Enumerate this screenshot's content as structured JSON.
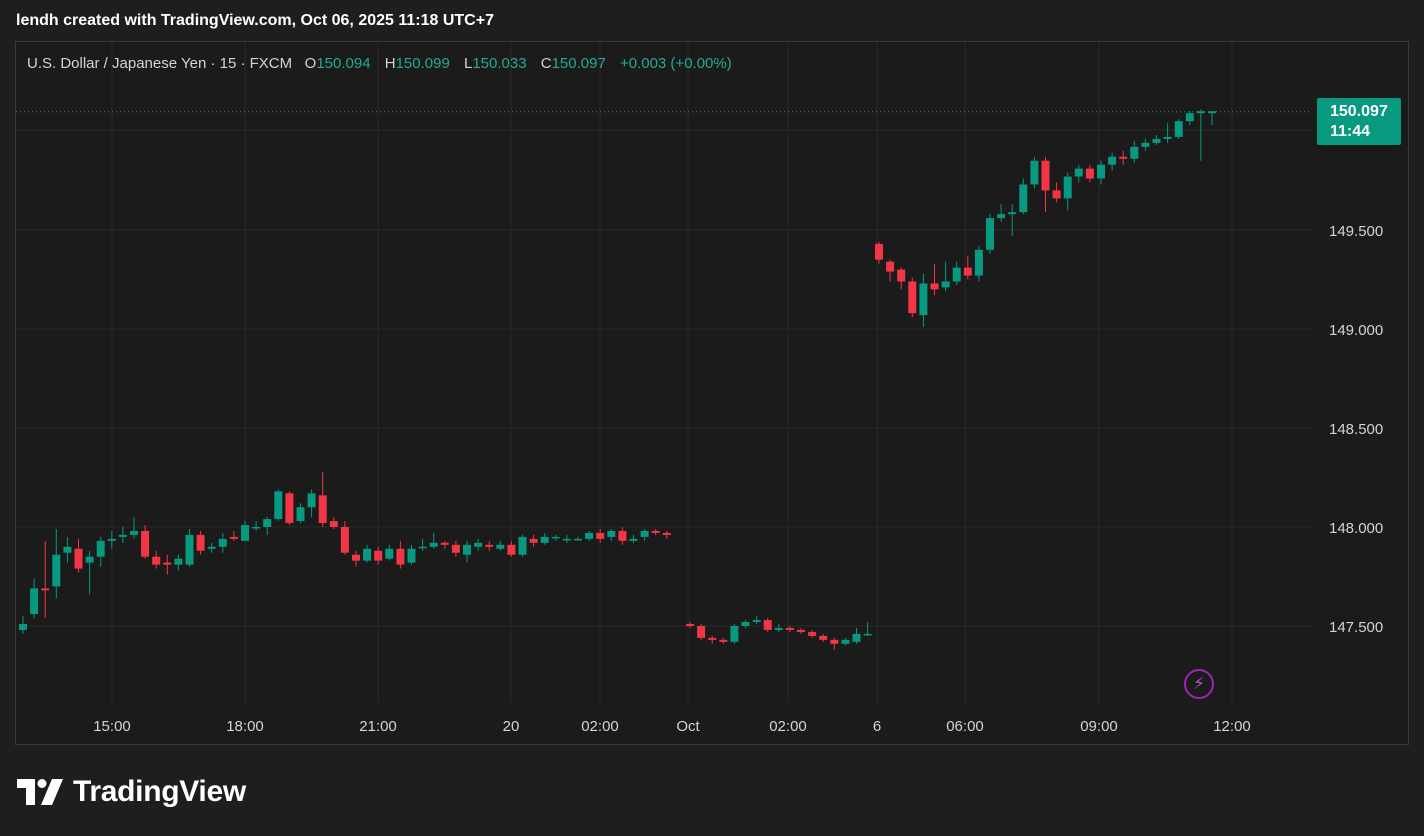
{
  "header": {
    "caption": "lendh created with TradingView.com, Oct 06, 2025 11:18 UTC+7"
  },
  "legend": {
    "symbol": "U.S. Dollar / Japanese Yen · 15 · FXCM",
    "open_label": "O",
    "open": "150.094",
    "high_label": "H",
    "high": "150.099",
    "low_label": "L",
    "low": "150.033",
    "close_label": "C",
    "close": "150.097",
    "change": "+0.003 (+0.00%)"
  },
  "price_tag": {
    "price": "150.097",
    "countdown": "11:44"
  },
  "icons": {
    "bolt": "lightning-bolt-icon",
    "logo": "tradingview-logo-icon"
  },
  "brand": {
    "name": "TradingView"
  },
  "colors": {
    "up": "#089981",
    "down": "#f23645",
    "background": "#1b1b1b",
    "grid": "#2a2a2a",
    "text": "#d1d4dc",
    "accent": "#9c27b0"
  },
  "chart_data": {
    "type": "candlestick",
    "title": "U.S. Dollar / Japanese Yen · 15 · FXCM",
    "ylim": [
      147.12,
      150.47
    ],
    "y_ticks": [
      "147.500",
      "148.000",
      "148.500",
      "149.000",
      "149.500"
    ],
    "x_tick_labels": [
      "15:00",
      "18:00",
      "21:00",
      "20",
      "02:00",
      "Oct",
      "02:00",
      "6",
      "06:00",
      "09:00",
      "12:00"
    ],
    "last_price": 150.097,
    "grid": true,
    "candles": [
      [
        147.48,
        147.51,
        147.46,
        147.55
      ],
      [
        147.56,
        147.69,
        147.54,
        147.74
      ],
      [
        147.69,
        147.68,
        147.54,
        147.93
      ],
      [
        147.7,
        147.86,
        147.64,
        147.99
      ],
      [
        147.87,
        147.9,
        147.82,
        147.95
      ],
      [
        147.89,
        147.79,
        147.77,
        147.94
      ],
      [
        147.82,
        147.85,
        147.66,
        147.88
      ],
      [
        147.85,
        147.93,
        147.8,
        147.95
      ],
      [
        147.93,
        147.94,
        147.89,
        147.98
      ],
      [
        147.95,
        147.96,
        147.92,
        148.0
      ],
      [
        147.96,
        147.98,
        147.94,
        148.05
      ],
      [
        147.98,
        147.85,
        147.84,
        148.01
      ],
      [
        147.85,
        147.81,
        147.79,
        147.88
      ],
      [
        147.82,
        147.81,
        147.76,
        147.86
      ],
      [
        147.81,
        147.84,
        147.78,
        147.86
      ],
      [
        147.81,
        147.96,
        147.8,
        147.99
      ],
      [
        147.96,
        147.88,
        147.86,
        147.98
      ],
      [
        147.89,
        147.9,
        147.87,
        147.92
      ],
      [
        147.9,
        147.94,
        147.87,
        147.97
      ],
      [
        147.95,
        147.94,
        147.93,
        147.98
      ],
      [
        147.93,
        148.01,
        147.93,
        148.03
      ],
      [
        148.0,
        148.0,
        147.98,
        148.03
      ],
      [
        148.0,
        148.04,
        147.96,
        148.05
      ],
      [
        148.04,
        148.18,
        148.03,
        148.19
      ],
      [
        148.17,
        148.02,
        148.01,
        148.18
      ],
      [
        148.03,
        148.1,
        148.02,
        148.12
      ],
      [
        148.1,
        148.17,
        148.05,
        148.19
      ],
      [
        148.16,
        148.02,
        148.0,
        148.28
      ],
      [
        148.03,
        148.0,
        147.99,
        148.05
      ],
      [
        148.0,
        147.87,
        147.86,
        148.03
      ],
      [
        147.86,
        147.83,
        147.8,
        147.88
      ],
      [
        147.83,
        147.89,
        147.82,
        147.91
      ],
      [
        147.88,
        147.83,
        147.81,
        147.9
      ],
      [
        147.84,
        147.89,
        147.83,
        147.91
      ],
      [
        147.89,
        147.81,
        147.79,
        147.93
      ],
      [
        147.82,
        147.89,
        147.81,
        147.91
      ],
      [
        147.9,
        147.9,
        147.88,
        147.94
      ],
      [
        147.9,
        147.92,
        147.89,
        147.97
      ],
      [
        147.92,
        147.91,
        147.89,
        147.93
      ],
      [
        147.91,
        147.87,
        147.85,
        147.93
      ],
      [
        147.86,
        147.91,
        147.82,
        147.93
      ],
      [
        147.9,
        147.92,
        147.88,
        147.94
      ],
      [
        147.91,
        147.9,
        147.88,
        147.93
      ],
      [
        147.89,
        147.91,
        147.88,
        147.93
      ],
      [
        147.91,
        147.86,
        147.85,
        147.93
      ],
      [
        147.86,
        147.95,
        147.85,
        147.96
      ],
      [
        147.94,
        147.92,
        147.9,
        147.96
      ],
      [
        147.92,
        147.95,
        147.91,
        147.97
      ],
      [
        147.95,
        147.95,
        147.93,
        147.96
      ],
      [
        147.94,
        147.94,
        147.92,
        147.96
      ],
      [
        147.94,
        147.94,
        147.93,
        147.95
      ],
      [
        147.94,
        147.97,
        147.93,
        147.98
      ],
      [
        147.97,
        147.94,
        147.92,
        147.99
      ],
      [
        147.95,
        147.98,
        147.93,
        147.99
      ],
      [
        147.98,
        147.93,
        147.91,
        148.0
      ],
      [
        147.93,
        147.94,
        147.92,
        147.96
      ],
      [
        147.95,
        147.98,
        147.93,
        147.99
      ],
      [
        147.98,
        147.97,
        147.96,
        147.99
      ],
      [
        147.97,
        147.96,
        147.94,
        147.98
      ],
      [
        147.51,
        147.5,
        147.49,
        147.52
      ],
      [
        147.5,
        147.44,
        147.43,
        147.51
      ],
      [
        147.44,
        147.43,
        147.41,
        147.45
      ],
      [
        147.43,
        147.42,
        147.41,
        147.44
      ],
      [
        147.42,
        147.5,
        147.41,
        147.51
      ],
      [
        147.5,
        147.52,
        147.49,
        147.53
      ],
      [
        147.52,
        147.53,
        147.51,
        147.55
      ],
      [
        147.53,
        147.48,
        147.47,
        147.54
      ],
      [
        147.48,
        147.49,
        147.47,
        147.51
      ],
      [
        147.49,
        147.48,
        147.47,
        147.5
      ],
      [
        147.48,
        147.47,
        147.46,
        147.49
      ],
      [
        147.47,
        147.45,
        147.44,
        147.48
      ],
      [
        147.45,
        147.43,
        147.42,
        147.46
      ],
      [
        147.43,
        147.41,
        147.38,
        147.44
      ],
      [
        147.41,
        147.43,
        147.4,
        147.44
      ],
      [
        147.42,
        147.46,
        147.41,
        147.49
      ],
      [
        147.46,
        147.46,
        147.45,
        147.52
      ],
      [
        149.43,
        149.35,
        149.33,
        149.44
      ],
      [
        149.34,
        149.29,
        149.24,
        149.35
      ],
      [
        149.3,
        149.24,
        149.2,
        149.31
      ],
      [
        149.24,
        149.08,
        149.06,
        149.26
      ],
      [
        149.07,
        149.23,
        149.01,
        149.28
      ],
      [
        149.23,
        149.2,
        149.17,
        149.33
      ],
      [
        149.21,
        149.24,
        149.19,
        149.34
      ],
      [
        149.24,
        149.31,
        149.22,
        149.34
      ],
      [
        149.31,
        149.27,
        149.25,
        149.37
      ],
      [
        149.27,
        149.4,
        149.24,
        149.42
      ],
      [
        149.4,
        149.56,
        149.38,
        149.58
      ],
      [
        149.56,
        149.58,
        149.54,
        149.63
      ],
      [
        149.58,
        149.59,
        149.47,
        149.63
      ],
      [
        149.59,
        149.73,
        149.58,
        149.76
      ],
      [
        149.73,
        149.85,
        149.71,
        149.87
      ],
      [
        149.85,
        149.7,
        149.59,
        149.87
      ],
      [
        149.7,
        149.66,
        149.64,
        149.74
      ],
      [
        149.66,
        149.77,
        149.6,
        149.79
      ],
      [
        149.77,
        149.81,
        149.74,
        149.83
      ],
      [
        149.81,
        149.76,
        149.74,
        149.83
      ],
      [
        149.76,
        149.83,
        149.73,
        149.85
      ],
      [
        149.83,
        149.87,
        149.8,
        149.89
      ],
      [
        149.87,
        149.86,
        149.83,
        149.9
      ],
      [
        149.86,
        149.92,
        149.84,
        149.95
      ],
      [
        149.92,
        149.94,
        149.9,
        149.96
      ],
      [
        149.94,
        149.96,
        149.93,
        149.98
      ],
      [
        149.96,
        149.97,
        149.94,
        150.04
      ],
      [
        149.97,
        150.05,
        149.96,
        150.06
      ],
      [
        150.05,
        150.09,
        150.03,
        150.1
      ],
      [
        150.09,
        150.1,
        149.85,
        150.11
      ],
      [
        150.09,
        150.1,
        150.03,
        150.1
      ]
    ]
  }
}
